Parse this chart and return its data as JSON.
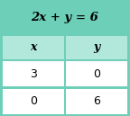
{
  "title": "2x + y = 6",
  "col_labels": [
    "x",
    "y"
  ],
  "rows": [
    [
      "3",
      "0"
    ],
    [
      "0",
      "6"
    ]
  ],
  "header_bg": "#6dcfb8",
  "col_header_bg": "#b2e8dc",
  "cell_bg": "#ffffff",
  "border_color": "#6dcfb8",
  "title_fontsize": 9.5,
  "label_fontsize": 9,
  "cell_fontsize": 9,
  "figwidth": 1.44,
  "figheight": 1.29,
  "dpi": 100
}
